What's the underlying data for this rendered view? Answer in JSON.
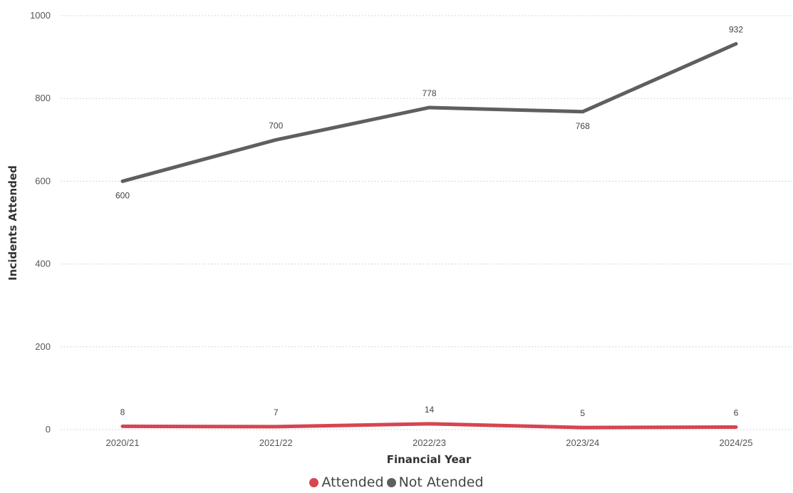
{
  "chart_data": {
    "type": "line",
    "xlabel": "Financial Year",
    "ylabel": "Incidents Attended",
    "categories": [
      "2020/21",
      "2021/22",
      "2022/23",
      "2023/24",
      "2024/25"
    ],
    "ylim": [
      0,
      1000
    ],
    "yticks": [
      "0",
      "200",
      "400",
      "600",
      "800",
      "1000"
    ],
    "grid": "horizontal dotted",
    "legend_position": "bottom-center",
    "series": [
      {
        "name": "Attended",
        "values": [
          8,
          7,
          14,
          5,
          6
        ],
        "color": "#d64550"
      },
      {
        "name": "Not Atended",
        "values": [
          600,
          700,
          778,
          768,
          932
        ],
        "color": "#5f5f5f"
      }
    ]
  }
}
